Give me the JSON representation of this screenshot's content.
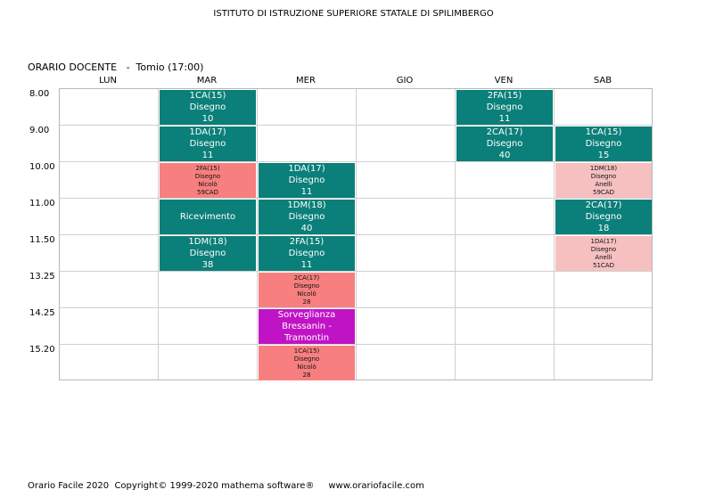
{
  "header": {
    "school": "ISTITUTO DI ISTRUZIONE SUPERIORE STATALE DI SPILIMBERGO",
    "title": "ORARIO DOCENTE   -  Tomio (17:00)"
  },
  "days": [
    "LUN",
    "MAR",
    "MER",
    "GIO",
    "VEN",
    "SAB"
  ],
  "times": [
    "8.00",
    "9.00",
    "10.00",
    "11.00",
    "11.50",
    "13.25",
    "14.25",
    "15.20"
  ],
  "colors": {
    "teal": "#0b7f79",
    "red": "#f77f7f",
    "pink": "#f6c0c0",
    "purple": "#c113c6"
  },
  "lessons": [
    {
      "day": "MAR",
      "time": "8.00",
      "style": "teal",
      "lines": [
        "1CA(15)",
        "Disegno",
        "10"
      ]
    },
    {
      "day": "VEN",
      "time": "8.00",
      "style": "teal",
      "lines": [
        "2FA(15)",
        "Disegno",
        "11"
      ]
    },
    {
      "day": "MAR",
      "time": "9.00",
      "style": "teal",
      "lines": [
        "1DA(17)",
        "Disegno",
        "11"
      ]
    },
    {
      "day": "VEN",
      "time": "9.00",
      "style": "teal",
      "lines": [
        "2CA(17)",
        "Disegno",
        "40"
      ]
    },
    {
      "day": "SAB",
      "time": "9.00",
      "style": "teal",
      "lines": [
        "1CA(15)",
        "Disegno",
        "15"
      ]
    },
    {
      "day": "MAR",
      "time": "10.00",
      "style": "red",
      "lines": [
        "2FA(15)",
        "Disegno",
        "Nicolò",
        "59CAD"
      ]
    },
    {
      "day": "MER",
      "time": "10.00",
      "style": "teal",
      "lines": [
        "1DA(17)",
        "Disegno",
        "11"
      ]
    },
    {
      "day": "SAB",
      "time": "10.00",
      "style": "pink",
      "lines": [
        "1DM(18)",
        "Disegno",
        "Anelli",
        "59CAD"
      ]
    },
    {
      "day": "MAR",
      "time": "11.00",
      "style": "teal",
      "lines": [
        "Ricevimento"
      ]
    },
    {
      "day": "MER",
      "time": "11.00",
      "style": "teal",
      "lines": [
        "1DM(18)",
        "Disegno",
        "40"
      ]
    },
    {
      "day": "SAB",
      "time": "11.00",
      "style": "teal",
      "lines": [
        "2CA(17)",
        "Disegno",
        "18"
      ]
    },
    {
      "day": "MAR",
      "time": "11.50",
      "style": "teal",
      "lines": [
        "1DM(18)",
        "Disegno",
        "38"
      ]
    },
    {
      "day": "MER",
      "time": "11.50",
      "style": "teal",
      "lines": [
        "2FA(15)",
        "Disegno",
        "11"
      ]
    },
    {
      "day": "SAB",
      "time": "11.50",
      "style": "pink",
      "lines": [
        "1DA(17)",
        "Disegno",
        "Anelli",
        "51CAD"
      ]
    },
    {
      "day": "MER",
      "time": "13.25",
      "style": "red",
      "lines": [
        "2CA(17)",
        "Disegno",
        "Nicolò",
        "28"
      ]
    },
    {
      "day": "MER",
      "time": "14.25",
      "style": "purple",
      "lines": [
        "Sorveglianza",
        "Bressanin - Tramontin"
      ]
    },
    {
      "day": "MER",
      "time": "15.20",
      "style": "red",
      "lines": [
        "1CA(15)",
        "Disegno",
        "Nicolò",
        "28"
      ]
    }
  ],
  "footer": "Orario Facile 2020  Copyright© 1999-2020 mathema software®     www.orariofacile.com"
}
